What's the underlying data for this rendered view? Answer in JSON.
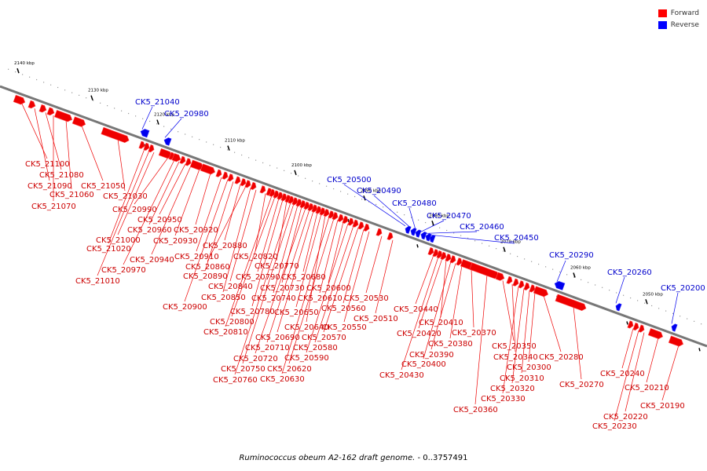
{
  "legend": {
    "items": [
      {
        "label": "Forward",
        "color": "#ff0000"
      },
      {
        "label": "Reverse",
        "color": "#0000ff"
      }
    ]
  },
  "caption": {
    "organism": "Ruminococcus obeum A2-162 draft genome.",
    "range": " - 0..3757491"
  },
  "colors": {
    "forward": "#ee0000",
    "reverse": "#0000ee",
    "forward_text": "#cc0000",
    "reverse_text": "#0000cc",
    "backbone": "#777777"
  },
  "scale": {
    "ticks": [
      "2140 kbp",
      "2130 kbp",
      "2120 kbp",
      "2110 kbp",
      "2100 kbp",
      "2090 kbp",
      "2080 kbp",
      "2070 kbp",
      "2060 kbp",
      "2050 kbp"
    ]
  },
  "genes": [
    {
      "id": "CK5_21100",
      "strand": "forward"
    },
    {
      "id": "CK5_21090",
      "strand": "forward"
    },
    {
      "id": "CK5_21080",
      "strand": "forward"
    },
    {
      "id": "CK5_21070",
      "strand": "forward"
    },
    {
      "id": "CK5_21060",
      "strand": "forward"
    },
    {
      "id": "CK5_21050",
      "strand": "forward"
    },
    {
      "id": "CK5_21040",
      "strand": "reverse"
    },
    {
      "id": "CK5_21030",
      "strand": "forward"
    },
    {
      "id": "CK5_21020",
      "strand": "forward"
    },
    {
      "id": "CK5_21010",
      "strand": "forward"
    },
    {
      "id": "CK5_21000",
      "strand": "forward"
    },
    {
      "id": "CK5_20990",
      "strand": "forward"
    },
    {
      "id": "CK5_20980",
      "strand": "reverse"
    },
    {
      "id": "CK5_20970",
      "strand": "forward"
    },
    {
      "id": "CK5_20960",
      "strand": "forward"
    },
    {
      "id": "CK5_20950",
      "strand": "forward"
    },
    {
      "id": "CK5_20940",
      "strand": "forward"
    },
    {
      "id": "CK5_20930",
      "strand": "forward"
    },
    {
      "id": "CK5_20920",
      "strand": "forward"
    },
    {
      "id": "CK5_20910",
      "strand": "forward"
    },
    {
      "id": "CK5_20900",
      "strand": "forward"
    },
    {
      "id": "CK5_20890",
      "strand": "forward"
    },
    {
      "id": "CK5_20880",
      "strand": "forward"
    },
    {
      "id": "CK5_20860",
      "strand": "forward"
    },
    {
      "id": "CK5_20850",
      "strand": "forward"
    },
    {
      "id": "CK5_20840",
      "strand": "forward"
    },
    {
      "id": "CK5_20820",
      "strand": "forward"
    },
    {
      "id": "CK5_20810",
      "strand": "forward"
    },
    {
      "id": "CK5_20800",
      "strand": "forward"
    },
    {
      "id": "CK5_20790",
      "strand": "forward"
    },
    {
      "id": "CK5_20780",
      "strand": "forward"
    },
    {
      "id": "CK5_20770",
      "strand": "forward"
    },
    {
      "id": "CK5_20760",
      "strand": "forward"
    },
    {
      "id": "CK5_20750",
      "strand": "forward"
    },
    {
      "id": "CK5_20740",
      "strand": "forward"
    },
    {
      "id": "CK5_20730",
      "strand": "forward"
    },
    {
      "id": "CK5_20720",
      "strand": "forward"
    },
    {
      "id": "CK5_20710",
      "strand": "forward"
    },
    {
      "id": "CK5_20690",
      "strand": "forward"
    },
    {
      "id": "CK5_20680",
      "strand": "forward"
    },
    {
      "id": "CK5_20650",
      "strand": "forward"
    },
    {
      "id": "CK5_20640",
      "strand": "forward"
    },
    {
      "id": "CK5_20630",
      "strand": "forward"
    },
    {
      "id": "CK5_20620",
      "strand": "forward"
    },
    {
      "id": "CK5_20610",
      "strand": "forward"
    },
    {
      "id": "CK5_20600",
      "strand": "forward"
    },
    {
      "id": "CK5_20590",
      "strand": "forward"
    },
    {
      "id": "CK5_20580",
      "strand": "forward"
    },
    {
      "id": "CK5_20570",
      "strand": "forward"
    },
    {
      "id": "CK5_20560",
      "strand": "forward"
    },
    {
      "id": "CK5_20550",
      "strand": "forward"
    },
    {
      "id": "CK5_20530",
      "strand": "forward"
    },
    {
      "id": "CK5_20510",
      "strand": "forward"
    },
    {
      "id": "CK5_20500",
      "strand": "reverse"
    },
    {
      "id": "CK5_20490",
      "strand": "reverse"
    },
    {
      "id": "CK5_20480",
      "strand": "reverse"
    },
    {
      "id": "CK5_20470",
      "strand": "reverse"
    },
    {
      "id": "CK5_20460",
      "strand": "reverse"
    },
    {
      "id": "CK5_20450",
      "strand": "reverse"
    },
    {
      "id": "CK5_20440",
      "strand": "forward"
    },
    {
      "id": "CK5_20430",
      "strand": "forward"
    },
    {
      "id": "CK5_20420",
      "strand": "forward"
    },
    {
      "id": "CK5_20410",
      "strand": "forward"
    },
    {
      "id": "CK5_20400",
      "strand": "forward"
    },
    {
      "id": "CK5_20390",
      "strand": "forward"
    },
    {
      "id": "CK5_20380",
      "strand": "forward"
    },
    {
      "id": "CK5_20370",
      "strand": "forward"
    },
    {
      "id": "CK5_20360",
      "strand": "forward"
    },
    {
      "id": "CK5_20350",
      "strand": "forward"
    },
    {
      "id": "CK5_20340",
      "strand": "forward"
    },
    {
      "id": "CK5_20330",
      "strand": "forward"
    },
    {
      "id": "CK5_20320",
      "strand": "forward"
    },
    {
      "id": "CK5_20310",
      "strand": "forward"
    },
    {
      "id": "CK5_20300",
      "strand": "forward"
    },
    {
      "id": "CK5_20290",
      "strand": "reverse"
    },
    {
      "id": "CK5_20280",
      "strand": "forward"
    },
    {
      "id": "CK5_20270",
      "strand": "forward"
    },
    {
      "id": "CK5_20260",
      "strand": "reverse"
    },
    {
      "id": "CK5_20240",
      "strand": "forward"
    },
    {
      "id": "CK5_20230",
      "strand": "forward"
    },
    {
      "id": "CK5_20220",
      "strand": "forward"
    },
    {
      "id": "CK5_20210",
      "strand": "forward"
    },
    {
      "id": "CK5_20200",
      "strand": "reverse"
    },
    {
      "id": "CK5_20190",
      "strand": "forward"
    }
  ]
}
